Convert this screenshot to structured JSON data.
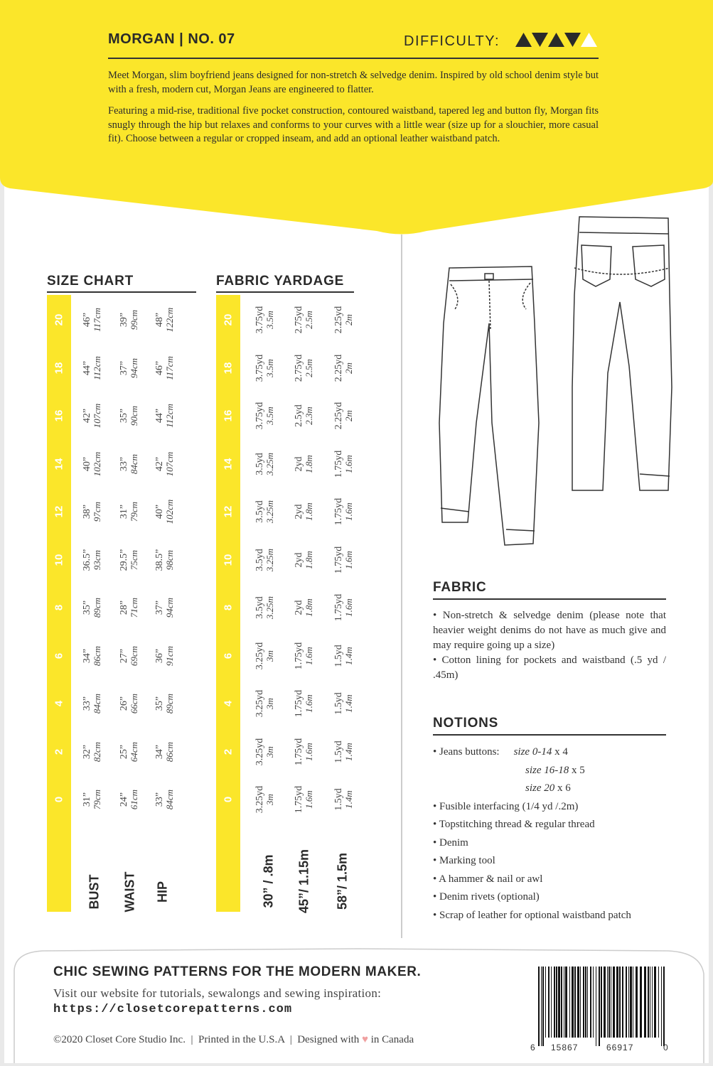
{
  "header": {
    "title": "MORGAN | NO. 07",
    "difficulty_label": "DIFFICULTY:",
    "difficulty_level": 4,
    "difficulty_max": 5,
    "paragraphs": [
      "Meet Morgan, slim boyfriend jeans designed for non-stretch & selvedge denim. Inspired by old school denim style but with a fresh, modern cut, Morgan Jeans are engineered to flatter.",
      "Featuring a mid-rise, traditional five pocket construction,  contoured waistband, tapered leg and button fly, Morgan fits snugly through the hip but relaxes and conforms to your curves with a little wear (size up for a slouchier, more casual fit). Choose between a regular or cropped inseam, and add an optional leather waistband patch."
    ]
  },
  "colors": {
    "accent": "#fbe62a",
    "heart": "#f0a0a0",
    "text": "#333333"
  },
  "size_chart": {
    "title": "SIZE CHART",
    "sizes": [
      "20",
      "18",
      "16",
      "14",
      "12",
      "10",
      "8",
      "6",
      "4",
      "2",
      "0"
    ],
    "rows": [
      {
        "label": "BUST",
        "values": [
          [
            "46”",
            "117cm"
          ],
          [
            "44”",
            "112cm"
          ],
          [
            "42”",
            "107cm"
          ],
          [
            "40”",
            "102cm"
          ],
          [
            "38”",
            "97cm"
          ],
          [
            "36.5”",
            "93cm"
          ],
          [
            "35”",
            "89cm"
          ],
          [
            "34”",
            "86cm"
          ],
          [
            "33”",
            "84cm"
          ],
          [
            "32”",
            "82cm"
          ],
          [
            "31”",
            "79cm"
          ]
        ]
      },
      {
        "label": "WAIST",
        "values": [
          [
            "39”",
            "99cm"
          ],
          [
            "37”",
            "94cm"
          ],
          [
            "35”",
            "90cm"
          ],
          [
            "33”",
            "84cm"
          ],
          [
            "31”",
            "79cm"
          ],
          [
            "29.5”",
            "75cm"
          ],
          [
            "28”",
            "71cm"
          ],
          [
            "27”",
            "69cm"
          ],
          [
            "26”",
            "66cm"
          ],
          [
            "25”",
            "64cm"
          ],
          [
            "24”",
            "61cm"
          ]
        ]
      },
      {
        "label": "HIP",
        "values": [
          [
            "48”",
            "122cm"
          ],
          [
            "46”",
            "117cm"
          ],
          [
            "44”",
            "112cm"
          ],
          [
            "42”",
            "107cm"
          ],
          [
            "40”",
            "102cm"
          ],
          [
            "38.5”",
            "98cm"
          ],
          [
            "37”",
            "94cm"
          ],
          [
            "36”",
            "91cm"
          ],
          [
            "35”",
            "89cm"
          ],
          [
            "34”",
            "86cm"
          ],
          [
            "33”",
            "84cm"
          ]
        ]
      }
    ]
  },
  "fabric_yardage": {
    "title": "FABRIC YARDAGE",
    "sizes": [
      "20",
      "18",
      "16",
      "14",
      "12",
      "10",
      "8",
      "6",
      "4",
      "2",
      "0"
    ],
    "rows": [
      {
        "label": "30” / .8m",
        "values": [
          [
            "3.75yd",
            "3.5m"
          ],
          [
            "3.75yd",
            "3.5m"
          ],
          [
            "3.75yd",
            "3.5m"
          ],
          [
            "3.5yd",
            "3.25m"
          ],
          [
            "3.5yd",
            "3.25m"
          ],
          [
            "3.5yd",
            "3.25m"
          ],
          [
            "3.5yd",
            "3.25m"
          ],
          [
            "3.25yd",
            "3m"
          ],
          [
            "3.25yd",
            "3m"
          ],
          [
            "3.25yd",
            "3m"
          ],
          [
            "3.25yd",
            "3m"
          ]
        ]
      },
      {
        "label": "45”/ 1.15m",
        "values": [
          [
            "2.75yd",
            "2.5m"
          ],
          [
            "2.75yd",
            "2.5m"
          ],
          [
            "2.5yd",
            "2.3m"
          ],
          [
            "2yd",
            "1.8m"
          ],
          [
            "2yd",
            "1.8m"
          ],
          [
            "2yd",
            "1.8m"
          ],
          [
            "2yd",
            "1.8m"
          ],
          [
            "1.75yd",
            "1.6m"
          ],
          [
            "1.75yd",
            "1.6m"
          ],
          [
            "1.75yd",
            "1.6m"
          ],
          [
            "1.75yd",
            "1.6m"
          ]
        ]
      },
      {
        "label": "58”/ 1.5m",
        "values": [
          [
            "2.25yd",
            "2m"
          ],
          [
            "2.25yd",
            "2m"
          ],
          [
            "2.25yd",
            "2m"
          ],
          [
            "1.75yd",
            "1.6m"
          ],
          [
            "1.75yd",
            "1.6m"
          ],
          [
            "1.75yd",
            "1.6m"
          ],
          [
            "1.75yd",
            "1.6m"
          ],
          [
            "1.5yd",
            "1.4m"
          ],
          [
            "1.5yd",
            "1.4m"
          ],
          [
            "1.5yd",
            "1.4m"
          ],
          [
            "1.5yd",
            "1.4m"
          ]
        ]
      }
    ]
  },
  "fabric": {
    "title": "FABRIC",
    "items": [
      "• Non-stretch & selvedge denim (please note that heavier weight denims do not have as much give and may require going up a size)",
      "•  Cotton lining for pockets and waistband (.5 yd / .45m)"
    ]
  },
  "notions": {
    "title": "NOTIONS",
    "buttons_label": "• Jeans buttons:",
    "buttons": [
      {
        "size": "size 0-14",
        "qty": " x 4"
      },
      {
        "size": "size 16-18",
        "qty": " x 5"
      },
      {
        "size": "size 20",
        "qty": " x 6"
      }
    ],
    "items": [
      "• Fusible interfacing (1/4 yd /.2m)",
      "• Topstitching thread & regular thread",
      "• Denim",
      "• Marking tool",
      "• A hammer & nail or awl",
      "• Denim rivets (optional)",
      "• Scrap of leather for optional waistband patch"
    ]
  },
  "footer": {
    "tagline": "CHIC SEWING PATTERNS FOR THE MODERN MAKER.",
    "visit": "Visit our website for tutorials, sewalongs and sewing inspiration:",
    "url": "https://closetcorepatterns.com",
    "copyright": "©2020 Closet Core Studio Inc.  |  Printed in the U.S.A  |  Designed with",
    "heart_icon": "heart-icon",
    "canada": "in Canada",
    "barcode_digits": [
      "6",
      "15867",
      "66917",
      "0"
    ]
  }
}
